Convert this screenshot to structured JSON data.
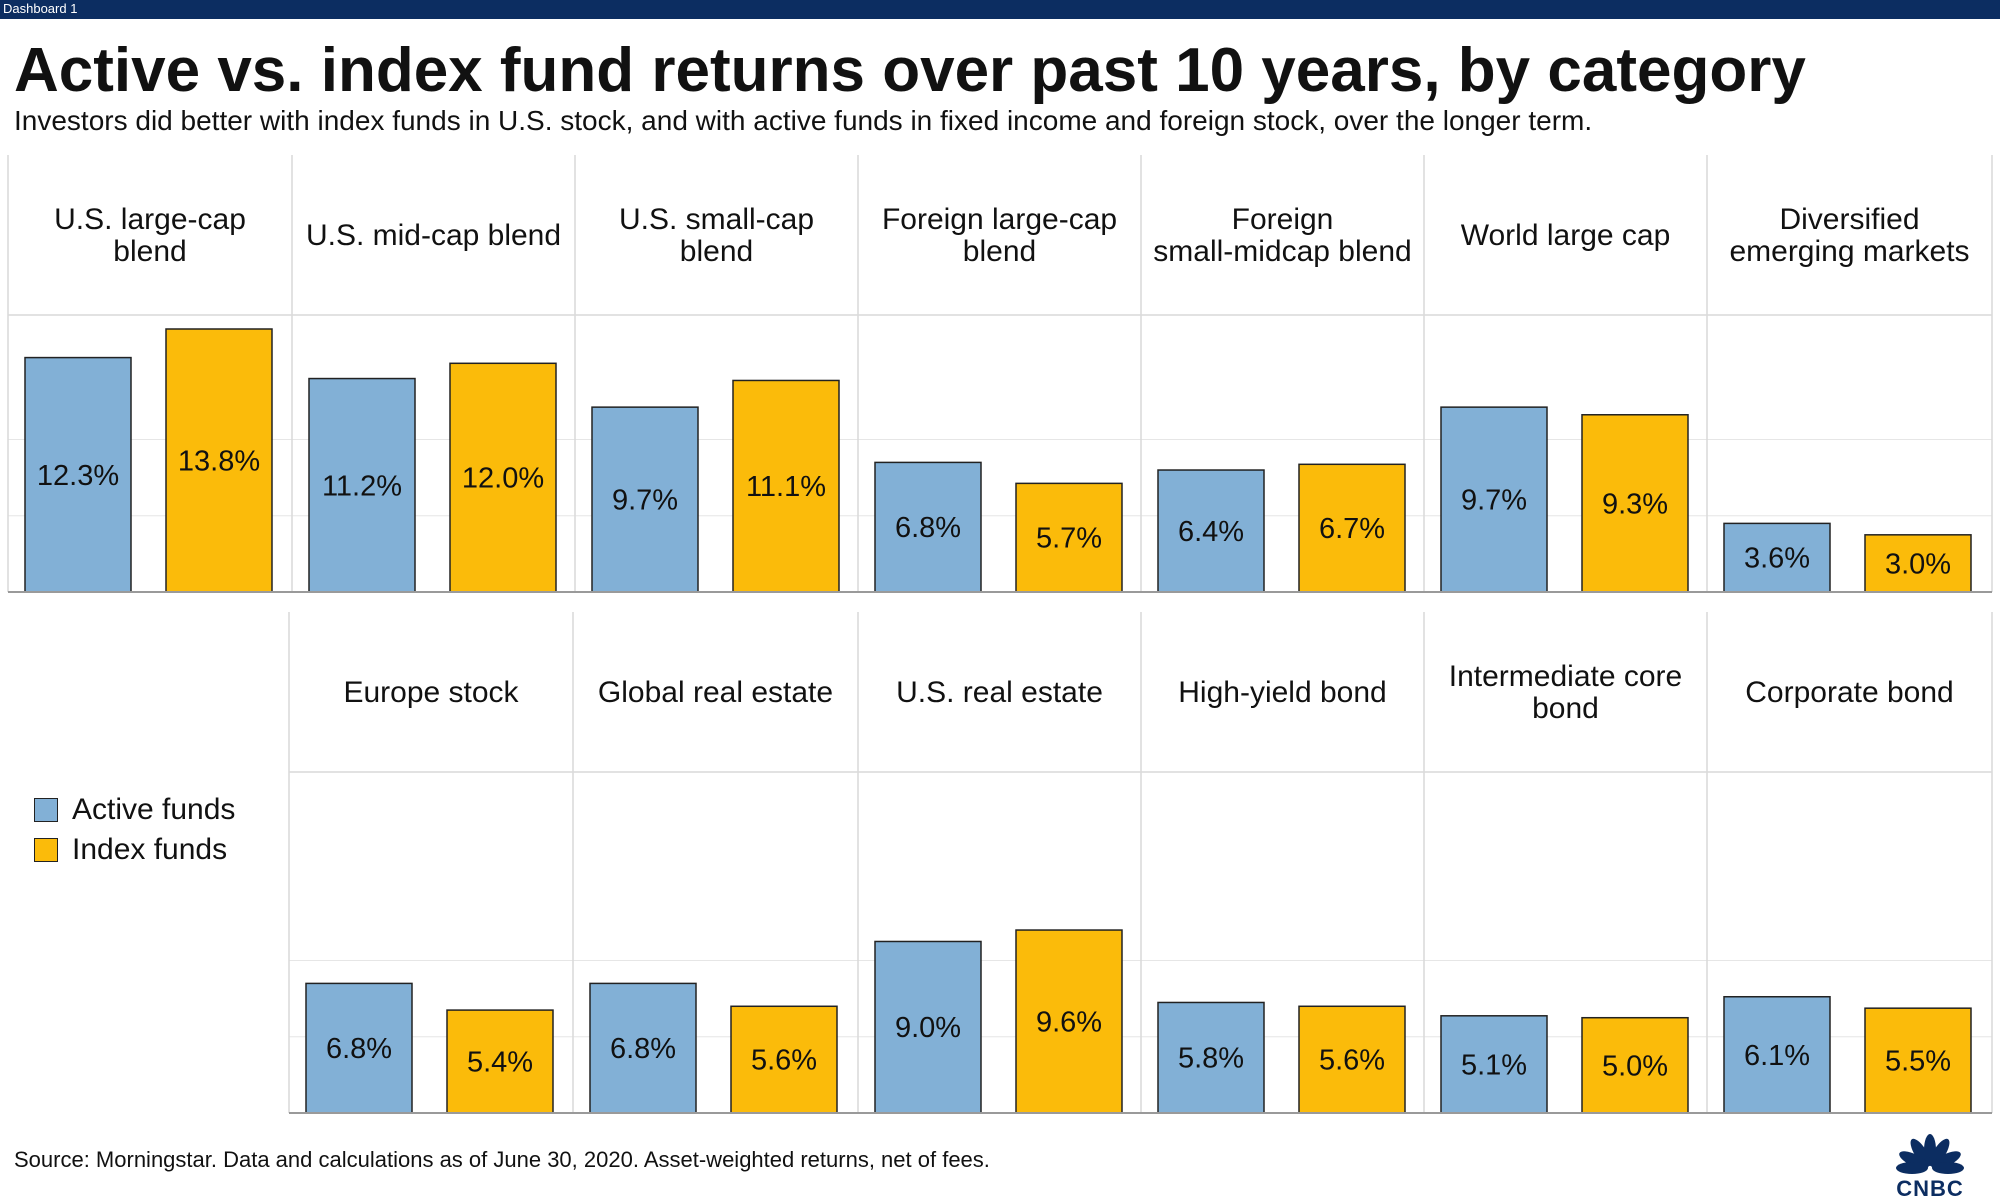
{
  "window": {
    "tab_label": "Dashboard 1"
  },
  "header": {
    "title": "Active vs. index fund returns over past 10 years, by category",
    "subtitle": "Investors did better with index funds in U.S. stock, and with active funds in fixed income and foreign stock, over the longer term."
  },
  "legend": {
    "items": [
      {
        "label": "Active funds",
        "color": "#82b0d6"
      },
      {
        "label": "Index funds",
        "color": "#fbbb0a"
      }
    ]
  },
  "footer": {
    "source": "Source: Morningstar. Data and calculations as of June 30, 2020. Asset-weighted returns, net of fees.",
    "logo_text": "CNBC"
  },
  "colors": {
    "active": "#82b0d6",
    "index": "#fbbb0a",
    "header_bar": "#0c2d61",
    "grid": "#d9d9d9"
  },
  "chart_data": {
    "type": "bar",
    "title": "Active vs. index fund returns over past 10 years, by category",
    "subtitle": "Investors did better with index funds in U.S. stock, and with active funds in fixed income and foreign stock, over the longer term.",
    "series_names": [
      "Active funds",
      "Index funds"
    ],
    "value_format": "percent",
    "ylim": [
      0,
      16
    ],
    "grid": true,
    "legend_position": "left",
    "rows": [
      {
        "panels": [
          {
            "label": [
              "U.S. large-cap",
              "blend"
            ],
            "values": [
              12.3,
              13.8
            ],
            "value_labels": [
              "12.3%",
              "13.8%"
            ]
          },
          {
            "label": [
              "U.S. mid-cap blend"
            ],
            "values": [
              11.2,
              12.0
            ],
            "value_labels": [
              "11.2%",
              "12.0%"
            ]
          },
          {
            "label": [
              "U.S. small-cap",
              "blend"
            ],
            "values": [
              9.7,
              11.1
            ],
            "value_labels": [
              "9.7%",
              "11.1%"
            ]
          },
          {
            "label": [
              "Foreign large-cap",
              "blend"
            ],
            "values": [
              6.8,
              5.7
            ],
            "value_labels": [
              "6.8%",
              "5.7%"
            ]
          },
          {
            "label": [
              "Foreign",
              "small-midcap blend"
            ],
            "values": [
              6.4,
              6.7
            ],
            "value_labels": [
              "6.4%",
              "6.7%"
            ]
          },
          {
            "label": [
              "World large cap"
            ],
            "values": [
              9.7,
              9.3
            ],
            "value_labels": [
              "9.7%",
              "9.3%"
            ]
          },
          {
            "label": [
              "Diversified",
              "emerging markets"
            ],
            "values": [
              3.6,
              3.0
            ],
            "value_labels": [
              "3.6%",
              "3.0%"
            ]
          }
        ]
      },
      {
        "panels": [
          {
            "label": [
              "Europe stock"
            ],
            "values": [
              6.8,
              5.4
            ],
            "value_labels": [
              "6.8%",
              "5.4%"
            ]
          },
          {
            "label": [
              "Global real estate"
            ],
            "values": [
              6.8,
              5.6
            ],
            "value_labels": [
              "6.8%",
              "5.6%"
            ]
          },
          {
            "label": [
              "U.S. real estate"
            ],
            "values": [
              9.0,
              9.6
            ],
            "value_labels": [
              "9.0%",
              "9.6%"
            ]
          },
          {
            "label": [
              "High-yield bond"
            ],
            "values": [
              5.8,
              5.6
            ],
            "value_labels": [
              "5.8%",
              "5.6%"
            ]
          },
          {
            "label": [
              "Intermediate core",
              "bond"
            ],
            "values": [
              5.1,
              5.0
            ],
            "value_labels": [
              "5.1%",
              "5.0%"
            ]
          },
          {
            "label": [
              "Corporate bond"
            ],
            "values": [
              6.1,
              5.5
            ],
            "value_labels": [
              "6.1%",
              "5.5%"
            ]
          }
        ]
      }
    ]
  }
}
